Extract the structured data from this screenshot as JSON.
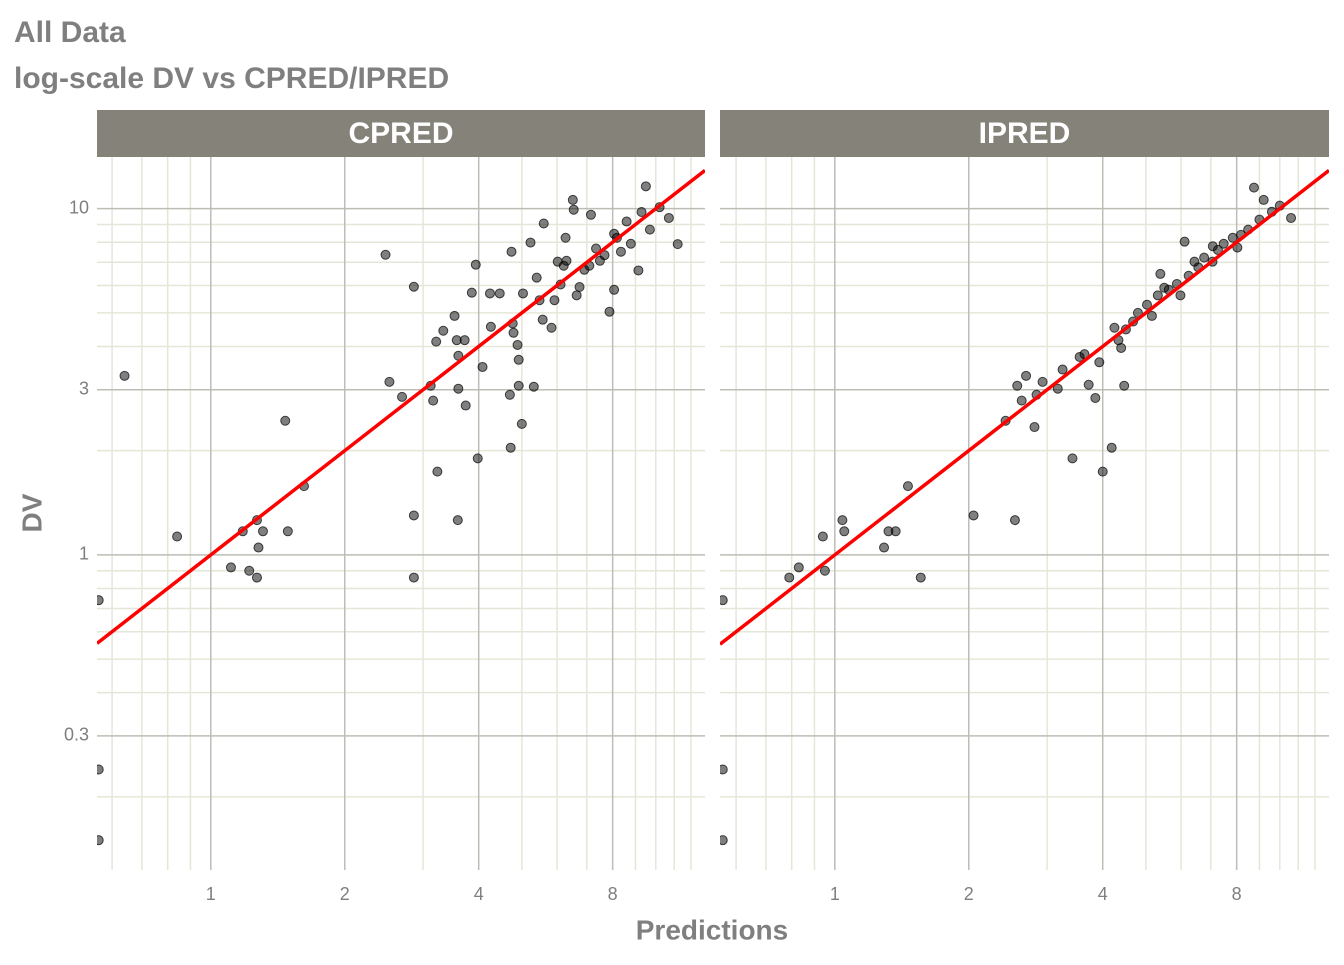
{
  "title": "All Data",
  "subtitle": "log-scale DV vs CPRED/IPRED",
  "x_label": "Predictions",
  "y_label": "DV",
  "chart_data": [
    {
      "type": "scatter",
      "facet": "CPRED",
      "x_scale": "log",
      "y_scale": "log",
      "color": "#000000",
      "reference_line_color": "#ff0000",
      "xlim": [
        0.555,
        12.9
      ],
      "ylim": [
        0.123,
        14.1
      ],
      "xticks": [
        1,
        2,
        4,
        8
      ],
      "yticks": [
        0.3,
        1,
        3,
        10
      ],
      "x": [
        0.56,
        0.56,
        0.56,
        0.64,
        0.84,
        1.11,
        1.18,
        1.22,
        1.27,
        1.27,
        1.28,
        1.31,
        1.47,
        1.49,
        1.62,
        2.47,
        2.52,
        2.69,
        2.86,
        2.86,
        2.86,
        3.12,
        3.16,
        3.21,
        3.23,
        3.33,
        3.53,
        3.57,
        3.6,
        3.59,
        3.6,
        3.74,
        3.72,
        3.86,
        3.98,
        3.94,
        4.08,
        4.24,
        4.26,
        4.46,
        4.74,
        4.7,
        4.72,
        4.77,
        4.79,
        4.89,
        4.92,
        4.92,
        5.0,
        5.03,
        5.23,
        5.32,
        5.4,
        5.48,
        5.6,
        5.57,
        5.83,
        5.92,
        6.02,
        6.11,
        6.27,
        6.21,
        6.54,
        6.3,
        6.51,
        6.64,
        6.74,
        6.91,
        7.09,
        7.15,
        7.34,
        7.49,
        7.67,
        7.87,
        8.06,
        8.06,
        8.18,
        8.35,
        8.6,
        8.79,
        9.14,
        9.29,
        9.5,
        9.7,
        10.2,
        10.7,
        11.2
      ],
      "values": [
        0.74,
        0.24,
        0.15,
        3.29,
        1.13,
        0.92,
        1.17,
        0.9,
        1.26,
        0.86,
        1.05,
        1.17,
        2.44,
        1.17,
        1.58,
        7.36,
        3.16,
        2.86,
        5.95,
        1.3,
        0.86,
        3.08,
        2.79,
        4.13,
        1.74,
        4.44,
        4.9,
        4.17,
        3.76,
        1.26,
        3.02,
        2.7,
        4.17,
        5.72,
        1.9,
        6.89,
        3.49,
        5.69,
        4.56,
        5.69,
        7.51,
        2.9,
        2.04,
        4.66,
        4.38,
        4.04,
        3.08,
        3.66,
        2.39,
        5.69,
        7.98,
        3.06,
        6.32,
        5.44,
        9.06,
        4.78,
        4.53,
        5.44,
        7.03,
        6.04,
        8.24,
        6.84,
        9.93,
        7.07,
        10.6,
        5.62,
        5.94,
        6.66,
        6.84,
        9.6,
        7.67,
        7.07,
        7.34,
        5.04,
        5.83,
        8.46,
        8.24,
        7.51,
        9.18,
        7.92,
        6.63,
        9.78,
        11.6,
        8.7,
        10.1,
        9.4,
        7.9
      ]
    },
    {
      "type": "scatter",
      "facet": "IPRED",
      "x_scale": "log",
      "y_scale": "log",
      "color": "#000000",
      "reference_line_color": "#ff0000",
      "xlim": [
        0.552,
        12.9
      ],
      "ylim": [
        0.123,
        14.1
      ],
      "xticks": [
        1,
        2,
        4,
        8
      ],
      "yticks": [
        0.3,
        1,
        3,
        10
      ],
      "x": [
        0.56,
        0.56,
        0.56,
        0.79,
        0.83,
        0.94,
        0.95,
        1.04,
        1.05,
        1.29,
        1.32,
        1.37,
        1.46,
        1.56,
        2.05,
        2.42,
        2.54,
        2.57,
        2.63,
        2.69,
        2.81,
        2.84,
        2.93,
        3.17,
        3.25,
        3.42,
        3.55,
        3.64,
        3.72,
        3.85,
        3.93,
        4.0,
        4.19,
        4.25,
        4.34,
        4.4,
        4.47,
        4.51,
        4.68,
        4.8,
        5.03,
        5.16,
        5.32,
        5.39,
        5.5,
        5.63,
        5.87,
        5.98,
        6.11,
        6.24,
        6.43,
        6.56,
        6.76,
        7.07,
        7.06,
        7.26,
        7.48,
        7.84,
        8.03,
        8.18,
        8.49,
        8.75,
        9.0,
        9.2,
        9.6,
        10.0,
        10.6
      ],
      "values": [
        0.74,
        0.24,
        0.15,
        0.86,
        0.92,
        1.13,
        0.9,
        1.26,
        1.17,
        1.05,
        1.17,
        1.17,
        1.58,
        0.86,
        1.3,
        2.44,
        1.26,
        3.08,
        2.79,
        3.29,
        2.34,
        2.9,
        3.16,
        3.02,
        3.43,
        1.9,
        3.73,
        3.8,
        3.1,
        2.84,
        3.6,
        1.74,
        2.04,
        4.53,
        4.17,
        3.96,
        3.08,
        4.48,
        4.72,
        5.0,
        5.28,
        4.9,
        5.62,
        6.48,
        5.91,
        5.83,
        6.06,
        5.62,
        8.03,
        6.4,
        7.03,
        6.77,
        7.22,
        7.79,
        7.03,
        7.6,
        7.92,
        8.24,
        7.72,
        8.4,
        8.7,
        11.5,
        9.3,
        10.6,
        9.8,
        10.2,
        9.4
      ]
    }
  ]
}
